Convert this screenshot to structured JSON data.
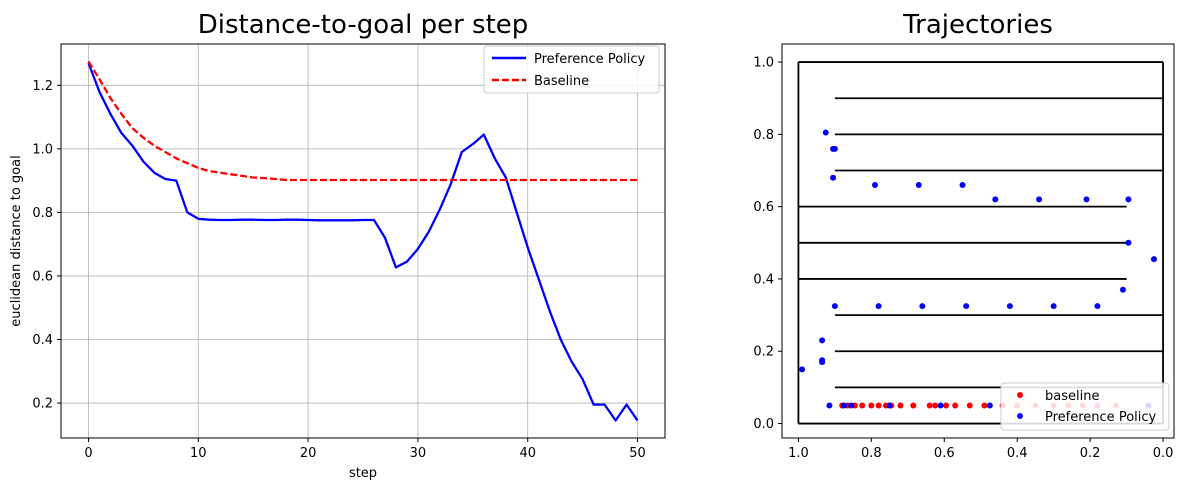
{
  "chart_data": [
    {
      "type": "line",
      "title": "Distance-to-goal per step",
      "xlabel": "step",
      "ylabel": "euclidean distance to goal",
      "xlim": [
        -2.5,
        52.5
      ],
      "ylim": [
        0.09,
        1.33
      ],
      "xticks": [
        0,
        10,
        20,
        30,
        40,
        50
      ],
      "xtick_labels": [
        "0",
        "10",
        "20",
        "30",
        "40",
        "50"
      ],
      "yticks": [
        0.2,
        0.4,
        0.6,
        0.8,
        1.0,
        1.2
      ],
      "ytick_labels": [
        "0.2",
        "0.4",
        "0.6",
        "0.8",
        "1.0",
        "1.2"
      ],
      "grid": true,
      "legend_position": "upper right",
      "series": [
        {
          "name": "Preference Policy",
          "color": "#0000ff",
          "line_style": "solid",
          "x": [
            0,
            1,
            2,
            3,
            4,
            5,
            6,
            7,
            8,
            9,
            10,
            11,
            12,
            13,
            14,
            15,
            16,
            17,
            18,
            19,
            20,
            21,
            22,
            23,
            24,
            25,
            26,
            27,
            28,
            29,
            30,
            31,
            32,
            33,
            34,
            35,
            36,
            37,
            38,
            39,
            40,
            41,
            42,
            43,
            44,
            45,
            46,
            47,
            48,
            49,
            50
          ],
          "y": [
            1.27,
            1.18,
            1.11,
            1.05,
            1.01,
            0.96,
            0.925,
            0.905,
            0.9,
            0.8,
            0.78,
            0.777,
            0.776,
            0.776,
            0.777,
            0.777,
            0.776,
            0.776,
            0.777,
            0.777,
            0.776,
            0.775,
            0.775,
            0.775,
            0.775,
            0.776,
            0.776,
            0.72,
            0.627,
            0.645,
            0.685,
            0.74,
            0.81,
            0.89,
            0.99,
            1.015,
            1.045,
            0.97,
            0.91,
            0.8,
            0.69,
            0.59,
            0.49,
            0.4,
            0.33,
            0.275,
            0.195,
            0.195,
            0.145,
            0.195,
            0.145
          ]
        },
        {
          "name": "Baseline",
          "color": "#ff0000",
          "line_style": "dashed",
          "x": [
            0,
            1,
            2,
            3,
            4,
            5,
            6,
            7,
            8,
            9,
            10,
            11,
            12,
            13,
            14,
            15,
            16,
            17,
            18,
            19,
            20,
            22,
            25,
            30,
            35,
            40,
            45,
            50
          ],
          "y": [
            1.275,
            1.22,
            1.16,
            1.11,
            1.065,
            1.035,
            1.01,
            0.99,
            0.97,
            0.955,
            0.94,
            0.93,
            0.925,
            0.92,
            0.915,
            0.91,
            0.908,
            0.905,
            0.902,
            0.902,
            0.902,
            0.902,
            0.902,
            0.902,
            0.902,
            0.902,
            0.902,
            0.902
          ]
        }
      ]
    },
    {
      "type": "scatter",
      "title": "Trajectories",
      "xlim": [
        1.045,
        -0.03
      ],
      "ylim": [
        -0.04,
        1.05
      ],
      "x_inverted": true,
      "xticks": [
        1.0,
        0.8,
        0.6,
        0.4,
        0.2,
        0.0
      ],
      "xtick_labels": [
        "1.0",
        "0.8",
        "0.6",
        "0.4",
        "0.2",
        "0.0"
      ],
      "yticks": [
        0.0,
        0.2,
        0.4,
        0.6,
        0.8,
        1.0
      ],
      "ytick_labels": [
        "0.0",
        "0.2",
        "0.4",
        "0.6",
        "0.8",
        "1.0"
      ],
      "grid": false,
      "legend_position": "lower right",
      "maze_segments": [
        [
          [
            1.0,
            0.0
          ],
          [
            1.0,
            1.0
          ]
        ],
        [
          [
            1.0,
            1.0
          ],
          [
            0.0,
            1.0
          ]
        ],
        [
          [
            0.0,
            1.0
          ],
          [
            0.0,
            0.0
          ]
        ],
        [
          [
            0.0,
            0.0
          ],
          [
            1.0,
            0.0
          ]
        ],
        [
          [
            0.9,
            0.9
          ],
          [
            0.0,
            0.9
          ]
        ],
        [
          [
            0.9,
            0.8
          ],
          [
            0.0,
            0.8
          ]
        ],
        [
          [
            0.9,
            0.7
          ],
          [
            0.0,
            0.7
          ]
        ],
        [
          [
            1.0,
            0.6
          ],
          [
            0.1,
            0.6
          ]
        ],
        [
          [
            1.0,
            0.5
          ],
          [
            0.1,
            0.5
          ]
        ],
        [
          [
            1.0,
            0.4
          ],
          [
            0.1,
            0.4
          ]
        ],
        [
          [
            0.9,
            0.3
          ],
          [
            0.0,
            0.3
          ]
        ],
        [
          [
            0.9,
            0.2
          ],
          [
            0.0,
            0.2
          ]
        ],
        [
          [
            0.9,
            0.1
          ],
          [
            0.0,
            0.1
          ]
        ]
      ],
      "series": [
        {
          "name": "baseline",
          "color": "#ff0000",
          "points": [
            [
              0.88,
              0.05
            ],
            [
              0.865,
              0.05
            ],
            [
              0.845,
              0.05
            ],
            [
              0.825,
              0.05
            ],
            [
              0.8,
              0.05
            ],
            [
              0.78,
              0.05
            ],
            [
              0.76,
              0.05
            ],
            [
              0.745,
              0.05
            ],
            [
              0.72,
              0.05
            ],
            [
              0.685,
              0.05
            ],
            [
              0.64,
              0.05
            ],
            [
              0.625,
              0.05
            ],
            [
              0.595,
              0.05
            ],
            [
              0.57,
              0.05
            ],
            [
              0.53,
              0.05
            ],
            [
              0.49,
              0.05
            ],
            [
              0.44,
              0.05
            ],
            [
              0.4,
              0.05
            ],
            [
              0.35,
              0.05
            ],
            [
              0.3,
              0.05
            ],
            [
              0.26,
              0.05
            ],
            [
              0.22,
              0.05
            ],
            [
              0.18,
              0.05
            ],
            [
              0.13,
              0.05
            ]
          ]
        },
        {
          "name": "Preference Policy",
          "color": "#0000ff",
          "points": [
            [
              0.99,
              0.15
            ],
            [
              0.935,
              0.17
            ],
            [
              0.935,
              0.175
            ],
            [
              0.935,
              0.23
            ],
            [
              0.915,
              0.05
            ],
            [
              0.875,
              0.05
            ],
            [
              0.855,
              0.05
            ],
            [
              0.75,
              0.05
            ],
            [
              0.61,
              0.05
            ],
            [
              0.475,
              0.05
            ],
            [
              0.9,
              0.325
            ],
            [
              0.78,
              0.325
            ],
            [
              0.66,
              0.325
            ],
            [
              0.54,
              0.325
            ],
            [
              0.42,
              0.325
            ],
            [
              0.3,
              0.325
            ],
            [
              0.18,
              0.325
            ],
            [
              0.11,
              0.37
            ],
            [
              0.025,
              0.455
            ],
            [
              0.095,
              0.5
            ],
            [
              0.095,
              0.62
            ],
            [
              0.21,
              0.62
            ],
            [
              0.34,
              0.62
            ],
            [
              0.46,
              0.62
            ],
            [
              0.55,
              0.66
            ],
            [
              0.67,
              0.66
            ],
            [
              0.79,
              0.66
            ],
            [
              0.905,
              0.68
            ],
            [
              0.9,
              0.76
            ],
            [
              0.905,
              0.76
            ],
            [
              0.925,
              0.805
            ],
            [
              0.04,
              0.05
            ]
          ]
        }
      ]
    }
  ]
}
